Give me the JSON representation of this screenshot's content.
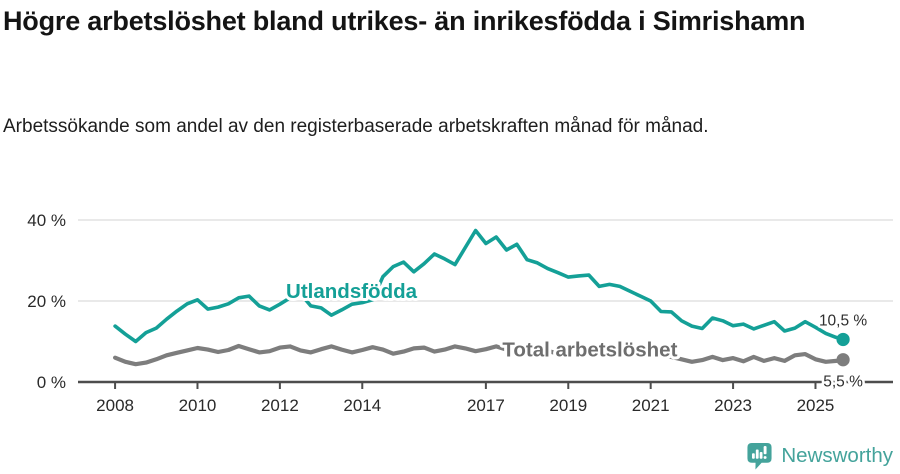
{
  "header": {
    "title": "Högre arbetslöshet bland utrikes- än inrikesfödda i Simrishamn",
    "subtitle": "Arbetssökande som andel av den registerbaserade arbetskraften månad för månad."
  },
  "colors": {
    "accent_teal": "#14a097",
    "series_gray": "#7d7d7d",
    "label_gray": "#6e6e6e",
    "grid": "#dcdcdc",
    "axis": "#4d4d4d",
    "text_dark": "#141414",
    "logo_teal": "#44a39b"
  },
  "chart_data": {
    "type": "line",
    "title": "Högre arbetslöshet bland utrikes- än inrikesfödda i Simrishamn",
    "subtitle": "Arbetssökande som andel av den registerbaserade arbetskraften månad för månad.",
    "grid": "horizontal",
    "legend_position": "inline-labels",
    "x_axis": {
      "ticks": [
        2008,
        2010,
        2012,
        2014,
        2017,
        2019,
        2021,
        2023,
        2025
      ],
      "labels": [
        "2008",
        "2010",
        "2012",
        "2014",
        "2017",
        "2019",
        "2021",
        "2023",
        "2025"
      ],
      "range": [
        2007.1,
        2026.9
      ]
    },
    "y_axis": {
      "ticks": [
        0,
        20,
        40
      ],
      "labels": [
        "0 %",
        "20 %",
        "40 %"
      ],
      "range": [
        0,
        46.2
      ],
      "unit": "%"
    },
    "x": [
      2008,
      2008.25,
      2008.5,
      2008.75,
      2009,
      2009.25,
      2009.5,
      2009.75,
      2010,
      2010.25,
      2010.5,
      2010.75,
      2011,
      2011.25,
      2011.5,
      2011.75,
      2012,
      2012.25,
      2012.5,
      2012.75,
      2013,
      2013.25,
      2013.5,
      2013.75,
      2014,
      2014.25,
      2014.5,
      2014.75,
      2015,
      2015.25,
      2015.5,
      2015.75,
      2016,
      2016.25,
      2016.5,
      2016.75,
      2017,
      2017.25,
      2017.5,
      2017.75,
      2018,
      2018.25,
      2018.5,
      2018.75,
      2019,
      2019.25,
      2019.5,
      2019.75,
      2020,
      2020.25,
      2020.5,
      2020.75,
      2021,
      2021.25,
      2021.5,
      2021.75,
      2022,
      2022.25,
      2022.5,
      2022.75,
      2023,
      2023.25,
      2023.5,
      2023.75,
      2024,
      2024.25,
      2024.5,
      2024.75,
      2025,
      2025.25,
      2025.5,
      2025.67
    ],
    "series": [
      {
        "name": "Total arbetslöshet",
        "color": "#7d7d7d",
        "label_color": "#6e6e6e",
        "stroke_width": 4.2,
        "inline_label": {
          "text": "Total arbetslöshet",
          "x": 2017.4,
          "y": 6.3
        },
        "end_label": {
          "text": "5,5 %",
          "y": -1.1
        },
        "end_value": "5,5 %",
        "values": [
          6,
          5,
          4.4,
          4.8,
          5.6,
          6.6,
          7.2,
          7.8,
          8.4,
          8,
          7.4,
          7.9,
          8.9,
          8.1,
          7.3,
          7.6,
          8.5,
          8.8,
          7.8,
          7.3,
          8.1,
          8.8,
          8,
          7.3,
          7.9,
          8.6,
          8,
          7,
          7.5,
          8.3,
          8.5,
          7.5,
          8,
          8.8,
          8.3,
          7.6,
          8.1,
          8.8,
          8,
          7.4,
          7.8,
          8.3,
          7.7,
          7,
          7.3,
          7.8,
          7.3,
          6.8,
          7.5,
          8.3,
          8,
          7.3,
          7,
          6.6,
          6.2,
          5.6,
          5,
          5.4,
          6.2,
          5.4,
          5.9,
          5.1,
          6.2,
          5.2,
          5.9,
          5.2,
          6.6,
          6.9,
          5.6,
          5,
          5.2,
          5.5
        ]
      },
      {
        "name": "Utlandsfödda",
        "color": "#14a097",
        "label_color": "#14a097",
        "stroke_width": 3.6,
        "inline_label": {
          "text": "Utlandsfödda",
          "x": 2012.15,
          "y": 20.8
        },
        "end_label": {
          "text": "10,5 %",
          "y": 13.9
        },
        "end_value": "10,5 %",
        "values": [
          13.8,
          11.8,
          10,
          12.2,
          13.3,
          15.5,
          17.5,
          19.3,
          20.3,
          18,
          18.5,
          19.3,
          20.8,
          21.2,
          18.8,
          17.8,
          19.2,
          20.8,
          21.8,
          18.8,
          18.3,
          16.5,
          17.8,
          19.2,
          19.6,
          20.3,
          26,
          28.5,
          29.6,
          27.2,
          29.2,
          31.6,
          30.4,
          29,
          33.2,
          37.4,
          34.2,
          35.8,
          32.6,
          34,
          30.2,
          29.4,
          28,
          27,
          25.9,
          26.2,
          26.4,
          23.6,
          24.1,
          23.6,
          22.4,
          21.2,
          20,
          17.4,
          17.3,
          15.1,
          13.8,
          13.2,
          15.8,
          15.1,
          13.9,
          14.3,
          13.1,
          14,
          14.9,
          12.6,
          13.3,
          14.9,
          13.5,
          12,
          11,
          10.5
        ]
      }
    ]
  },
  "footer": {
    "brand": "Newsworthy",
    "logo_icon": "bar-chart-speech-bubble"
  }
}
